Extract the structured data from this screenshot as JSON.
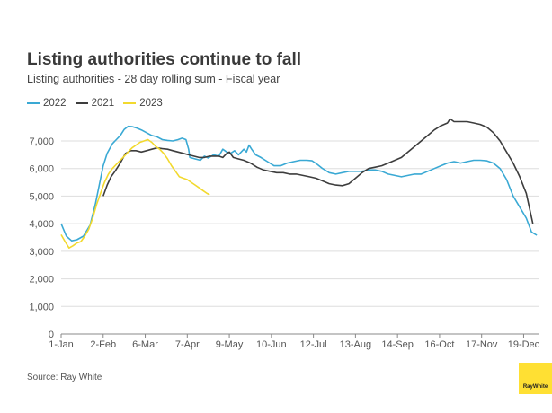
{
  "title": "Listing authorities continue to fall",
  "subtitle": "Listing authorities - 28 day rolling sum - Fiscal year",
  "source": "Source: Ray White",
  "logo_text": "RayWhite",
  "colors": {
    "s2022": "#3aa9d4",
    "s2021": "#3d3d3d",
    "s2023": "#f2d92e",
    "grid": "#dddddd",
    "axis": "#888888"
  },
  "chart_data": {
    "type": "line",
    "x_unit": "day of year",
    "ylim": [
      0,
      8000
    ],
    "xlim": [
      1,
      365
    ],
    "grid": true,
    "legend_placement": "top-left",
    "y_ticks": [
      0,
      1000,
      2000,
      3000,
      4000,
      5000,
      6000,
      7000
    ],
    "y_tick_labels": [
      "0",
      "1,000",
      "2,000",
      "3,000",
      "4,000",
      "5,000",
      "6,000",
      "7,000"
    ],
    "x_ticks": [
      1,
      33,
      65,
      97,
      129,
      161,
      193,
      225,
      257,
      289,
      321,
      353
    ],
    "x_tick_labels": [
      "1-Jan",
      "2-Feb",
      "6-Mar",
      "7-Apr",
      "9-May",
      "10-Jun",
      "12-Jul",
      "13-Aug",
      "14-Sep",
      "16-Oct",
      "17-Nov",
      "19-Dec"
    ],
    "series": [
      {
        "name": "2022",
        "color_key": "s2022",
        "points": [
          [
            1,
            4000
          ],
          [
            5,
            3550
          ],
          [
            9,
            3380
          ],
          [
            13,
            3420
          ],
          [
            18,
            3550
          ],
          [
            23,
            3950
          ],
          [
            27,
            4700
          ],
          [
            30,
            5400
          ],
          [
            33,
            6100
          ],
          [
            36,
            6550
          ],
          [
            40,
            6900
          ],
          [
            43,
            7050
          ],
          [
            46,
            7200
          ],
          [
            49,
            7420
          ],
          [
            52,
            7530
          ],
          [
            55,
            7520
          ],
          [
            58,
            7480
          ],
          [
            62,
            7400
          ],
          [
            66,
            7300
          ],
          [
            70,
            7200
          ],
          [
            74,
            7150
          ],
          [
            78,
            7050
          ],
          [
            82,
            7020
          ],
          [
            86,
            7000
          ],
          [
            90,
            7050
          ],
          [
            93,
            7100
          ],
          [
            96,
            7050
          ],
          [
            98,
            6700
          ],
          [
            99,
            6400
          ],
          [
            103,
            6350
          ],
          [
            107,
            6300
          ],
          [
            110,
            6450
          ],
          [
            113,
            6380
          ],
          [
            117,
            6500
          ],
          [
            121,
            6450
          ],
          [
            124,
            6700
          ],
          [
            127,
            6600
          ],
          [
            130,
            6550
          ],
          [
            133,
            6650
          ],
          [
            136,
            6500
          ],
          [
            140,
            6700
          ],
          [
            142,
            6600
          ],
          [
            144,
            6850
          ],
          [
            146,
            6700
          ],
          [
            149,
            6500
          ],
          [
            153,
            6400
          ],
          [
            158,
            6250
          ],
          [
            163,
            6100
          ],
          [
            168,
            6100
          ],
          [
            173,
            6200
          ],
          [
            178,
            6250
          ],
          [
            183,
            6300
          ],
          [
            188,
            6300
          ],
          [
            192,
            6280
          ],
          [
            196,
            6150
          ],
          [
            200,
            6000
          ],
          [
            205,
            5850
          ],
          [
            210,
            5800
          ],
          [
            215,
            5850
          ],
          [
            220,
            5900
          ],
          [
            225,
            5900
          ],
          [
            230,
            5900
          ],
          [
            235,
            5950
          ],
          [
            240,
            5950
          ],
          [
            245,
            5900
          ],
          [
            250,
            5800
          ],
          [
            255,
            5750
          ],
          [
            260,
            5700
          ],
          [
            265,
            5750
          ],
          [
            270,
            5800
          ],
          [
            275,
            5800
          ],
          [
            280,
            5900
          ],
          [
            285,
            6000
          ],
          [
            290,
            6100
          ],
          [
            295,
            6200
          ],
          [
            300,
            6250
          ],
          [
            305,
            6200
          ],
          [
            310,
            6250
          ],
          [
            315,
            6300
          ],
          [
            320,
            6300
          ],
          [
            325,
            6280
          ],
          [
            330,
            6200
          ],
          [
            335,
            6000
          ],
          [
            340,
            5600
          ],
          [
            345,
            5000
          ],
          [
            350,
            4600
          ],
          [
            355,
            4200
          ],
          [
            359,
            3700
          ],
          [
            363,
            3580
          ]
        ]
      },
      {
        "name": "2021",
        "color_key": "s2021",
        "points": [
          [
            33,
            5000
          ],
          [
            36,
            5400
          ],
          [
            39,
            5700
          ],
          [
            42,
            5900
          ],
          [
            46,
            6200
          ],
          [
            50,
            6550
          ],
          [
            54,
            6650
          ],
          [
            58,
            6650
          ],
          [
            62,
            6600
          ],
          [
            66,
            6650
          ],
          [
            70,
            6700
          ],
          [
            74,
            6750
          ],
          [
            78,
            6720
          ],
          [
            82,
            6700
          ],
          [
            86,
            6650
          ],
          [
            90,
            6600
          ],
          [
            94,
            6550
          ],
          [
            98,
            6500
          ],
          [
            102,
            6450
          ],
          [
            106,
            6400
          ],
          [
            110,
            6400
          ],
          [
            114,
            6450
          ],
          [
            118,
            6450
          ],
          [
            121,
            6450
          ],
          [
            124,
            6400
          ],
          [
            127,
            6550
          ],
          [
            129,
            6600
          ],
          [
            132,
            6400
          ],
          [
            136,
            6350
          ],
          [
            140,
            6300
          ],
          [
            145,
            6200
          ],
          [
            150,
            6050
          ],
          [
            155,
            5950
          ],
          [
            160,
            5900
          ],
          [
            165,
            5850
          ],
          [
            170,
            5850
          ],
          [
            175,
            5800
          ],
          [
            180,
            5800
          ],
          [
            185,
            5750
          ],
          [
            190,
            5700
          ],
          [
            195,
            5650
          ],
          [
            200,
            5550
          ],
          [
            205,
            5450
          ],
          [
            210,
            5400
          ],
          [
            215,
            5380
          ],
          [
            220,
            5450
          ],
          [
            225,
            5650
          ],
          [
            230,
            5850
          ],
          [
            235,
            6000
          ],
          [
            240,
            6050
          ],
          [
            245,
            6100
          ],
          [
            250,
            6200
          ],
          [
            255,
            6300
          ],
          [
            260,
            6400
          ],
          [
            265,
            6600
          ],
          [
            270,
            6800
          ],
          [
            275,
            7000
          ],
          [
            280,
            7200
          ],
          [
            285,
            7400
          ],
          [
            290,
            7550
          ],
          [
            295,
            7650
          ],
          [
            297,
            7800
          ],
          [
            300,
            7700
          ],
          [
            305,
            7700
          ],
          [
            310,
            7700
          ],
          [
            315,
            7650
          ],
          [
            320,
            7600
          ],
          [
            325,
            7500
          ],
          [
            330,
            7300
          ],
          [
            335,
            7000
          ],
          [
            340,
            6600
          ],
          [
            345,
            6200
          ],
          [
            350,
            5700
          ],
          [
            355,
            5100
          ],
          [
            360,
            4000
          ]
        ]
      },
      {
        "name": "2023",
        "color_key": "s2023",
        "points": [
          [
            1,
            3600
          ],
          [
            4,
            3350
          ],
          [
            7,
            3120
          ],
          [
            10,
            3200
          ],
          [
            13,
            3300
          ],
          [
            16,
            3350
          ],
          [
            19,
            3550
          ],
          [
            22,
            3800
          ],
          [
            25,
            4200
          ],
          [
            28,
            4700
          ],
          [
            31,
            5100
          ],
          [
            34,
            5500
          ],
          [
            37,
            5800
          ],
          [
            40,
            6000
          ],
          [
            43,
            6150
          ],
          [
            46,
            6300
          ],
          [
            49,
            6450
          ],
          [
            52,
            6600
          ],
          [
            55,
            6750
          ],
          [
            58,
            6850
          ],
          [
            61,
            6950
          ],
          [
            64,
            7000
          ],
          [
            67,
            7050
          ],
          [
            70,
            6950
          ],
          [
            73,
            6800
          ],
          [
            76,
            6700
          ],
          [
            79,
            6550
          ],
          [
            82,
            6350
          ],
          [
            85,
            6100
          ],
          [
            88,
            5900
          ],
          [
            91,
            5700
          ],
          [
            94,
            5650
          ],
          [
            97,
            5600
          ],
          [
            100,
            5500
          ],
          [
            103,
            5400
          ],
          [
            106,
            5300
          ],
          [
            109,
            5200
          ],
          [
            112,
            5100
          ],
          [
            114,
            5050
          ]
        ]
      }
    ]
  }
}
